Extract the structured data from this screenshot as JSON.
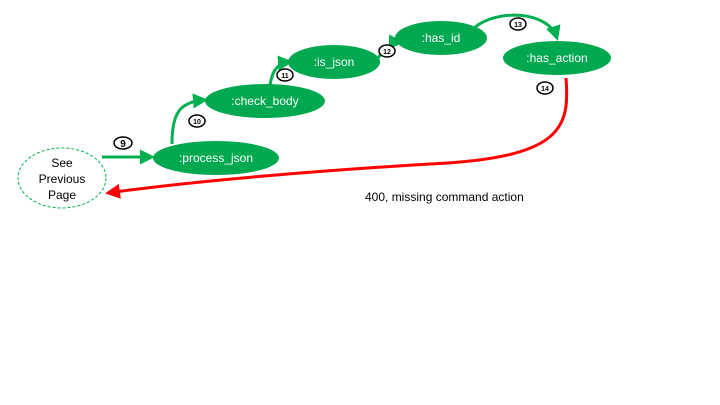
{
  "diagram": {
    "start_node": {
      "lines": [
        "See",
        "Previous",
        "Page"
      ]
    },
    "nodes": {
      "process_json": ":process_json",
      "check_body": ":check_body",
      "is_json": ":is_json",
      "has_id": ":has_id",
      "has_action": ":has_action"
    },
    "steps": {
      "s9": "9",
      "s10": "10",
      "s11": "11",
      "s12": "12",
      "s13": "13",
      "s14": "14"
    },
    "error_label": "400, missing command action",
    "colors": {
      "node_fill": "#00a84f",
      "success_arrow": "#00b050",
      "error_arrow": "#ff0000",
      "start_border": "#00b050"
    }
  }
}
